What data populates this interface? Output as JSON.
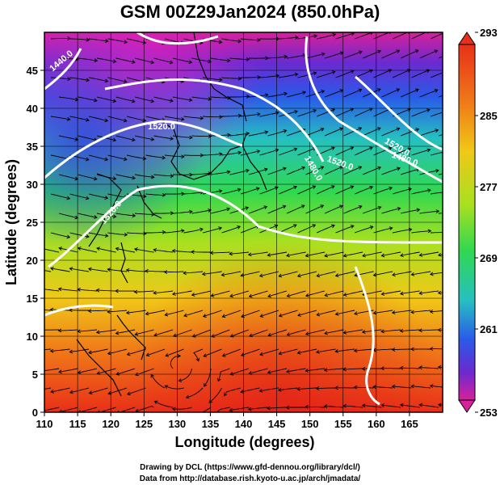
{
  "title": "GSM 00Z29Jan2024 (850.0hPa)",
  "xlabel": "Longitude (degrees)",
  "ylabel": "Latitude  (degrees)",
  "x_ticks": [
    "110",
    "115",
    "120",
    "125",
    "130",
    "135",
    "140",
    "145",
    "150",
    "155",
    "160",
    "165"
  ],
  "y_ticks": [
    "0",
    "5",
    "10",
    "15",
    "20",
    "25",
    "30",
    "35",
    "40",
    "45"
  ],
  "colorbar": {
    "labels": [
      "293",
      "285",
      "277",
      "269",
      "261",
      "253"
    ]
  },
  "contour_labels": [
    "1440.0",
    "1520.0",
    "1480.0",
    "1520.0",
    "1480.0",
    "1520.0",
    "1520.0"
  ],
  "credits": {
    "line1": "Drawing by DCL (https://www.gfd-dennou.org/library/dcl/)",
    "line2": "Data from http://database.rish.kyoto-u.ac.jp/arch/jmadata/"
  },
  "chart_data": {
    "type": "heatmap",
    "title": "GSM 00Z29Jan2024 (850.0hPa)",
    "xlabel": "Longitude (degrees)",
    "ylabel": "Latitude  (degrees)",
    "xlim": [
      110,
      170
    ],
    "ylim": [
      0,
      50
    ],
    "field": "temperature (K)",
    "colorbar_range": [
      253,
      293
    ],
    "colorbar_ticks": [
      253,
      261,
      269,
      277,
      285,
      293
    ],
    "contour_field": "geopotential height (m)",
    "contour_values": [
      1440,
      1480,
      1520
    ],
    "overlay": "wind streamlines",
    "grid": true
  }
}
